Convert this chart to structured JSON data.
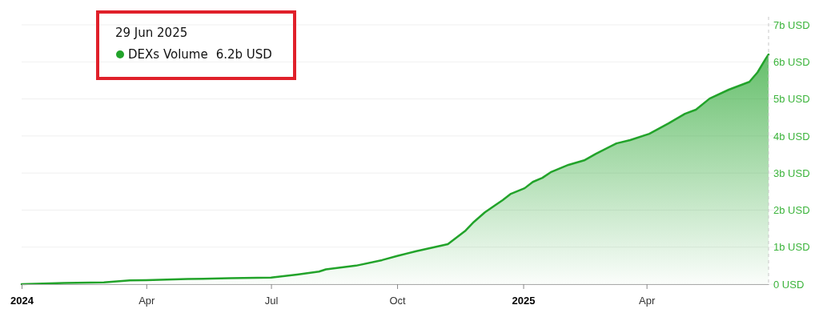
{
  "chart_data": {
    "type": "area",
    "x": [
      "2024-01-01",
      "2024-02-01",
      "2024-03-01",
      "2024-03-20",
      "2024-04-01",
      "2024-05-01",
      "2024-06-01",
      "2024-07-01",
      "2024-07-20",
      "2024-08-05",
      "2024-08-10",
      "2024-09-01",
      "2024-09-20",
      "2024-10-01",
      "2024-10-15",
      "2024-11-07",
      "2024-11-20",
      "2024-11-26",
      "2024-12-04",
      "2024-12-17",
      "2024-12-23",
      "2025-01-02",
      "2025-01-08",
      "2025-01-15",
      "2025-01-21",
      "2025-02-03",
      "2025-02-15",
      "2025-02-23",
      "2025-03-10",
      "2025-03-20",
      "2025-04-03",
      "2025-04-17",
      "2025-04-29",
      "2025-05-07",
      "2025-05-17",
      "2025-05-31",
      "2025-06-15",
      "2025-06-21",
      "2025-06-27",
      "2025-06-29"
    ],
    "series": [
      {
        "name": "DEXs Volume",
        "color": "#22a32a",
        "values": [
          0,
          0.03,
          0.05,
          0.1,
          0.11,
          0.14,
          0.16,
          0.18,
          0.26,
          0.34,
          0.4,
          0.5,
          0.65,
          0.76,
          0.89,
          1.08,
          1.45,
          1.68,
          1.94,
          2.27,
          2.44,
          2.59,
          2.76,
          2.87,
          3.02,
          3.22,
          3.35,
          3.52,
          3.8,
          3.89,
          4.06,
          4.34,
          4.6,
          4.71,
          5.01,
          5.25,
          5.46,
          5.72,
          6.09,
          6.2
        ]
      }
    ],
    "xlim": [
      "2024-01-01",
      "2025-06-29"
    ],
    "xticks": [
      {
        "value": "2024-01-01",
        "label": "2024"
      },
      {
        "value": "2024-04-01",
        "label": "Apr"
      },
      {
        "value": "2024-07-01",
        "label": "Jul"
      },
      {
        "value": "2024-10-01",
        "label": "Oct"
      },
      {
        "value": "2025-01-01",
        "label": "2025"
      },
      {
        "value": "2025-04-01",
        "label": "Apr"
      }
    ],
    "ylim": [
      0,
      7
    ],
    "yticks": [
      {
        "value": 0,
        "label": "0 USD"
      },
      {
        "value": 1,
        "label": "1b USD"
      },
      {
        "value": 2,
        "label": "2b USD"
      },
      {
        "value": 3,
        "label": "3b USD"
      },
      {
        "value": 4,
        "label": "4b USD"
      },
      {
        "value": 5,
        "label": "5b USD"
      },
      {
        "value": 6,
        "label": "6b USD"
      },
      {
        "value": 7,
        "label": "7b USD"
      }
    ],
    "grid": "y",
    "legend": "top left",
    "annotations": [
      "29 Jun 2025",
      "6.2b USD"
    ],
    "ref_lines": [
      {
        "axis": "x",
        "value": "2025-06-29",
        "color": "#c8c8c8",
        "line_style": "dashed"
      }
    ]
  }
}
